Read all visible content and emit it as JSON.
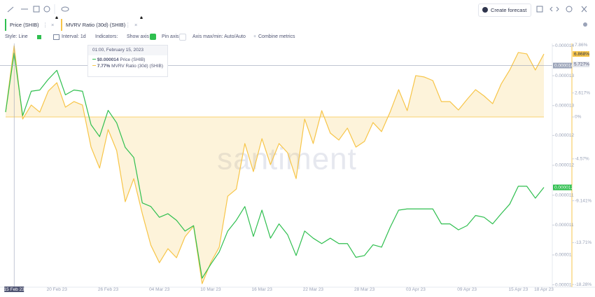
{
  "ui": {
    "create_forecast": "Create forecast",
    "controls": {
      "style": "Style: Line",
      "interval": "Interval: 1d",
      "indicators": "Indicators:",
      "show_axis": "Show axis",
      "pin_axis": "Pin axis",
      "axis_minmax": "Axis max/min: Auto/Auto",
      "combine": "Combine metrics"
    },
    "watermark": "santiment"
  },
  "tooltip": {
    "date": "01:00, February 15, 2023",
    "items": [
      {
        "value": "$0.000014"
      },
      {
        "value": "7.77%"
      }
    ]
  },
  "chart_data": {
    "type": "line",
    "grid": false,
    "categories": [
      null,
      "15 Feb 23",
      null,
      null,
      null,
      null,
      "20 Feb 23",
      null,
      null,
      null,
      null,
      null,
      "26 Feb 23",
      null,
      null,
      null,
      null,
      null,
      "04 Mar 23",
      null,
      null,
      null,
      null,
      null,
      "10 Mar 23",
      null,
      null,
      null,
      null,
      null,
      "16 Mar 23",
      null,
      null,
      null,
      null,
      null,
      "22 Mar 23",
      null,
      null,
      null,
      null,
      null,
      "28 Mar 23",
      null,
      null,
      null,
      null,
      null,
      "03 Apr 23",
      null,
      null,
      null,
      null,
      null,
      "09 Apr 23",
      null,
      null,
      null,
      null,
      null,
      "15 Apr 23",
      null,
      null,
      "18 Apr 23"
    ],
    "series": [
      {
        "name": "Price (SHIB)",
        "color": "#2fbf4f",
        "values": [
          1.289e-05,
          1.388e-05,
          1.283e-05,
          1.324e-05,
          1.326e-05,
          1.344e-05,
          1.359e-05,
          1.318e-05,
          1.326e-05,
          1.324e-05,
          1.268e-05,
          1.248e-05,
          1.292e-05,
          1.271e-05,
          1.23e-05,
          1.213e-05,
          1.137e-05,
          1.131e-05,
          1.113e-05,
          1.119e-05,
          1.108e-05,
          1.09e-05,
          1.099e-05,
          1.011e-05,
          1.034e-05,
          1.055e-05,
          1.09e-05,
          1.108e-05,
          1.131e-05,
          1.081e-05,
          1.125e-05,
          1.078e-05,
          1.102e-05,
          1.084e-05,
          1.049e-05,
          1.09e-05,
          1.078e-05,
          1.069e-05,
          1.078e-05,
          1.069e-05,
          1.069e-05,
          1.046e-05,
          1.049e-05,
          1.067e-05,
          1.063e-05,
          1.096e-05,
          1.125e-05,
          1.127e-05,
          1.127e-05,
          1.127e-05,
          1.127e-05,
          1.102e-05,
          1.102e-05,
          1.092e-05,
          1.099e-05,
          1.116e-05,
          1.113e-05,
          1.102e-05,
          1.119e-05,
          1.135e-05,
          1.165e-05,
          1.165e-05,
          1.145e-05,
          1.163e-05
        ]
      },
      {
        "name": "MVRV Ratio (30d) (SHIB)",
        "color": "#f7c548",
        "axis": "y2",
        "area": true,
        "values": [
          0.53,
          7.77,
          -0.23,
          1.3,
          0.53,
          2.83,
          3.74,
          1.07,
          1.68,
          1.3,
          -3.29,
          -5.58,
          -1.38,
          -3.67,
          -9.25,
          -6.73,
          -10.55,
          -13.99,
          -15.9,
          -14.37,
          -15.36,
          -13.07,
          -11.92,
          -18.19,
          -15.9,
          -14.21,
          -8.64,
          -7.87,
          -2.9,
          -5.96,
          -2.37,
          -5.2,
          -2.9,
          -3.9,
          -6.73,
          -0.23,
          -2.9,
          0.69,
          -1.76,
          -2.52,
          -1.22,
          -3.29,
          -2.67,
          -0.61,
          -1.6,
          0.53,
          2.98,
          0.69,
          4.51,
          4.36,
          3.97,
          1.68,
          1.68,
          0.76,
          1.91,
          2.98,
          2.29,
          1.45,
          3.59,
          5.12,
          7.03,
          6.88,
          5.12,
          6.868
        ]
      }
    ],
    "ylim": [
      9.96e-06,
      1.404e-05
    ],
    "yticks": [
      {
        "value": 1.4e-05,
        "label": "0.000014"
      },
      {
        "value": 1.35e-05,
        "label": "0.000013"
      },
      {
        "value": 1.3e-05,
        "label": "0.000013"
      },
      {
        "value": 1.25e-05,
        "label": "0.000012"
      },
      {
        "value": 1.2e-05,
        "label": "0.000012"
      },
      {
        "value": 1.15e-05,
        "label": "0.000011"
      },
      {
        "value": 1.1e-05,
        "label": "0.000011"
      },
      {
        "value": 1.05e-05,
        "label": "0.00001"
      },
      {
        "value": 1e-05,
        "label": "0.00001"
      }
    ],
    "y2lim": [
      -18.57,
      8.02
    ],
    "y2ticks": [
      {
        "value": 7.86,
        "label": "7.86%"
      },
      {
        "value": 2.617,
        "label": "2.617%"
      },
      {
        "value": 0,
        "label": "0%"
      },
      {
        "value": -4.57,
        "label": "-4.57%"
      },
      {
        "value": -9.141,
        "label": "-9.141%"
      },
      {
        "value": -13.71,
        "label": "-13.71%"
      },
      {
        "value": -18.28,
        "label": "-18.28%"
      }
    ],
    "y_markers": [
      {
        "value": 1.367e-05,
        "label": "0.000014"
      },
      {
        "value": 1.163e-05,
        "label": "0.000012"
      }
    ],
    "y2_markers": [
      {
        "value": 5.727,
        "label": "5.727%"
      },
      {
        "value": 6.868,
        "label": "6.868%"
      }
    ]
  }
}
